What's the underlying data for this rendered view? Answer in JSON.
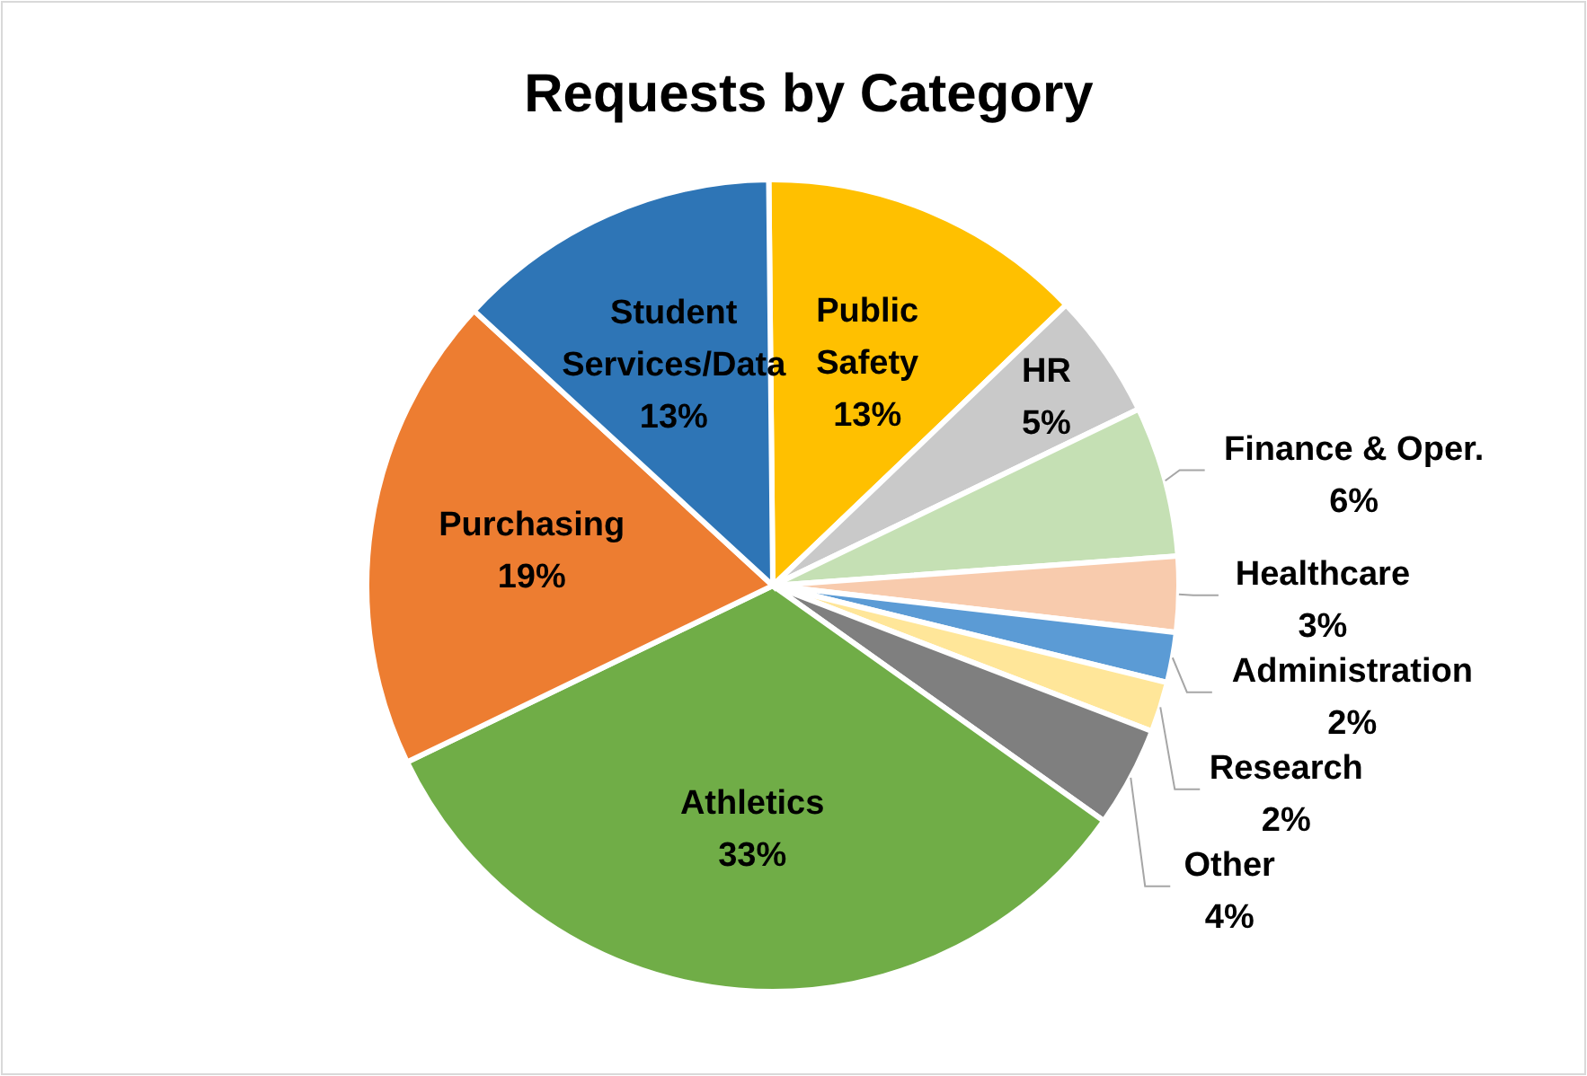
{
  "chart_data": {
    "type": "pie",
    "title": "Requests by Category",
    "categories": [
      "Public Safety",
      "HR",
      "Finance & Oper.",
      "Healthcare",
      "Administration",
      "Research",
      "Other",
      "Athletics",
      "Purchasing",
      "Student Services/Data"
    ],
    "values": [
      13,
      5,
      6,
      3,
      2,
      2,
      4,
      33,
      19,
      13
    ],
    "colors": [
      "#ffc000",
      "#c9c9c9",
      "#c5e0b4",
      "#f8cbad",
      "#5b9bd5",
      "#ffe699",
      "#7f7f7f",
      "#70ad47",
      "#ed7d31",
      "#2e75b6"
    ],
    "value_labels": [
      "13%",
      "5%",
      "6%",
      "3%",
      "2%",
      "2%",
      "4%",
      "33%",
      "19%",
      "13%"
    ]
  }
}
